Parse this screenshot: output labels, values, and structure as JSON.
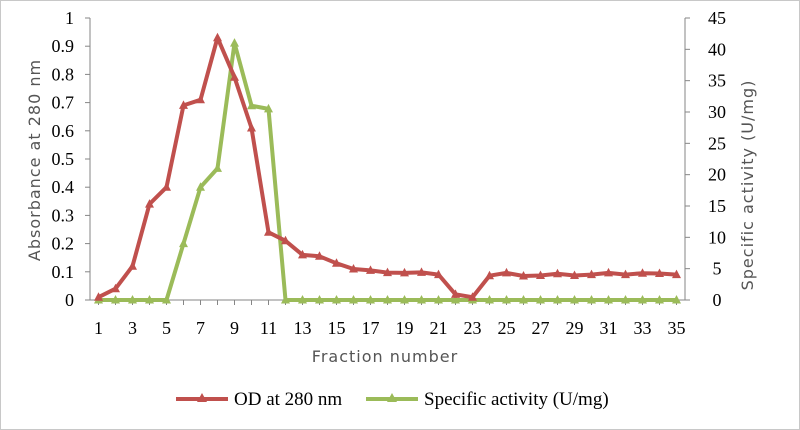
{
  "chart_data": {
    "type": "line",
    "title": "",
    "xlabel": "Fraction number",
    "ylabel_left": "Absorbance at 280 nm",
    "ylabel_right": "Specific activity (U/mg)",
    "x": [
      1,
      2,
      3,
      4,
      5,
      6,
      7,
      8,
      9,
      10,
      11,
      12,
      13,
      14,
      15,
      16,
      17,
      18,
      19,
      20,
      21,
      22,
      23,
      24,
      25,
      26,
      27,
      28,
      29,
      30,
      31,
      32,
      33,
      34,
      35
    ],
    "x_ticks": [
      "1",
      "3",
      "5",
      "7",
      "9",
      "11",
      "13",
      "15",
      "17",
      "19",
      "21",
      "23",
      "25",
      "27",
      "29",
      "31",
      "33",
      "35"
    ],
    "y_left_ticks": [
      "0",
      "0.1",
      "0.2",
      "0.3",
      "0.4",
      "0.5",
      "0.6",
      "0.7",
      "0.8",
      "0.9",
      "1"
    ],
    "y_right_ticks": [
      "0",
      "5",
      "10",
      "15",
      "20",
      "25",
      "30",
      "35",
      "40",
      "45"
    ],
    "ylim_left": [
      0,
      1
    ],
    "ylim_right": [
      0,
      45
    ],
    "grid": false,
    "legend_position": "bottom",
    "series": [
      {
        "name": "OD at 280 nm",
        "axis": "left",
        "color": "#c0504d",
        "marker": "triangle",
        "values": [
          0.01,
          0.04,
          0.12,
          0.34,
          0.4,
          0.69,
          0.71,
          0.93,
          0.79,
          0.61,
          0.24,
          0.21,
          0.16,
          0.155,
          0.13,
          0.11,
          0.105,
          0.097,
          0.096,
          0.098,
          0.09,
          0.02,
          0.01,
          0.086,
          0.096,
          0.085,
          0.087,
          0.093,
          0.087,
          0.09,
          0.096,
          0.09,
          0.095,
          0.094,
          0.09
        ]
      },
      {
        "name": "Specific activity (U/mg)",
        "axis": "right",
        "color": "#9bbb59",
        "marker": "triangle",
        "values": [
          0,
          0,
          0,
          0,
          0,
          9,
          18,
          21,
          41,
          31,
          30.5,
          0,
          0,
          0,
          0,
          0,
          0,
          0,
          0,
          0,
          0,
          0,
          0,
          0,
          0,
          0,
          0,
          0,
          0,
          0,
          0,
          0,
          0,
          0,
          0
        ]
      }
    ]
  }
}
